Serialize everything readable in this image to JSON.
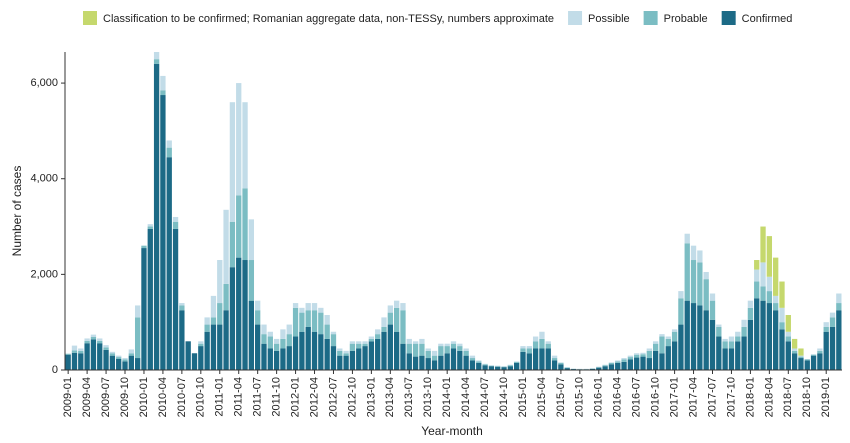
{
  "chart_data": {
    "type": "stacked-bar",
    "x_label": "Year-month",
    "y_label": "Number of cases",
    "categories": [
      "2009-01",
      null,
      null,
      "2009-04",
      null,
      null,
      "2009-07",
      null,
      null,
      "2009-10",
      null,
      null,
      "2010-01",
      null,
      null,
      "2010-04",
      null,
      null,
      "2010-07",
      null,
      null,
      "2010-10",
      null,
      null,
      "2011-01",
      null,
      null,
      "2011-04",
      null,
      null,
      "2011-07",
      null,
      null,
      "2011-10",
      null,
      null,
      "2012-01",
      null,
      null,
      "2012-04",
      null,
      null,
      "2012-07",
      null,
      null,
      "2012-10",
      null,
      null,
      "2013-01",
      null,
      null,
      "2013-04",
      null,
      null,
      "2013-07",
      null,
      null,
      "2013-10",
      null,
      null,
      "2014-01",
      null,
      null,
      "2014-04",
      null,
      null,
      "2014-07",
      null,
      null,
      "2014-10",
      null,
      null,
      "2015-01",
      null,
      null,
      "2015-04",
      null,
      null,
      "2015-07",
      null,
      null,
      "2015-10",
      null,
      null,
      "2016-01",
      null,
      null,
      "2016-04",
      null,
      null,
      "2016-07",
      null,
      null,
      "2016-10",
      null,
      null,
      "2017-01",
      null,
      null,
      "2017-04",
      null,
      null,
      "2017-07",
      null,
      null,
      "2017-10",
      null,
      null,
      "2018-01",
      null,
      null,
      "2018-04",
      null,
      null,
      "2018-07",
      null,
      null,
      "2018-10",
      null,
      null,
      "2019-01",
      null,
      null
    ],
    "series": [
      {
        "name": "Classification to be confirmed; Romanian aggregate data, non-TESSy, numbers approximate",
        "color": "#c5d86d",
        "values": [
          0,
          0,
          0,
          0,
          0,
          0,
          0,
          0,
          0,
          0,
          0,
          0,
          0,
          0,
          0,
          0,
          0,
          0,
          0,
          0,
          0,
          0,
          0,
          0,
          0,
          0,
          0,
          0,
          0,
          0,
          0,
          0,
          0,
          0,
          0,
          0,
          0,
          0,
          0,
          0,
          0,
          0,
          0,
          0,
          0,
          0,
          0,
          0,
          0,
          0,
          0,
          0,
          0,
          0,
          0,
          0,
          0,
          0,
          0,
          0,
          0,
          0,
          0,
          0,
          0,
          0,
          0,
          0,
          0,
          0,
          0,
          0,
          0,
          0,
          0,
          0,
          0,
          0,
          0,
          0,
          0,
          0,
          0,
          0,
          0,
          0,
          0,
          0,
          0,
          0,
          0,
          0,
          0,
          0,
          0,
          0,
          0,
          0,
          0,
          0,
          0,
          0,
          0,
          0,
          0,
          0,
          0,
          0,
          0,
          200,
          750,
          850,
          800,
          550,
          350,
          200,
          150,
          0,
          0,
          0,
          0,
          0,
          0
        ]
      },
      {
        "name": "Possible",
        "color": "#c2dce8",
        "values": [
          0,
          100,
          50,
          50,
          50,
          50,
          50,
          30,
          30,
          30,
          80,
          250,
          0,
          50,
          150,
          300,
          150,
          100,
          50,
          0,
          0,
          50,
          150,
          450,
          900,
          1550,
          2500,
          2350,
          1800,
          850,
          200,
          200,
          100,
          100,
          200,
          200,
          100,
          100,
          150,
          150,
          100,
          200,
          50,
          50,
          50,
          50,
          50,
          50,
          50,
          100,
          200,
          150,
          150,
          150,
          100,
          50,
          100,
          50,
          100,
          50,
          50,
          50,
          50,
          50,
          50,
          20,
          10,
          10,
          10,
          10,
          10,
          10,
          50,
          50,
          100,
          150,
          50,
          50,
          10,
          10,
          5,
          5,
          5,
          5,
          10,
          10,
          10,
          20,
          30,
          30,
          30,
          30,
          50,
          50,
          50,
          50,
          50,
          150,
          200,
          300,
          250,
          150,
          150,
          50,
          50,
          100,
          100,
          150,
          150,
          250,
          500,
          300,
          150,
          300,
          100,
          50,
          20,
          10,
          10,
          50,
          100,
          100,
          200
        ]
      },
      {
        "name": "Probable",
        "color": "#7bbdc3",
        "values": [
          20,
          50,
          50,
          50,
          50,
          50,
          50,
          50,
          40,
          40,
          50,
          850,
          50,
          50,
          100,
          100,
          200,
          150,
          100,
          0,
          0,
          50,
          150,
          150,
          450,
          550,
          950,
          1300,
          1500,
          850,
          300,
          200,
          250,
          150,
          200,
          250,
          600,
          400,
          350,
          450,
          450,
          300,
          250,
          100,
          50,
          150,
          100,
          50,
          50,
          100,
          100,
          250,
          500,
          700,
          200,
          270,
          250,
          150,
          100,
          200,
          150,
          100,
          100,
          100,
          50,
          30,
          20,
          10,
          10,
          10,
          20,
          20,
          70,
          100,
          150,
          200,
          100,
          50,
          30,
          10,
          5,
          5,
          5,
          5,
          10,
          20,
          30,
          30,
          50,
          50,
          60,
          50,
          150,
          150,
          350,
          150,
          200,
          550,
          1200,
          900,
          900,
          650,
          400,
          200,
          150,
          150,
          100,
          200,
          250,
          350,
          300,
          250,
          150,
          150,
          100,
          50,
          30,
          20,
          20,
          50,
          100,
          200,
          150
        ]
      },
      {
        "name": "Confirmed",
        "color": "#1c6a86",
        "values": [
          320,
          360,
          350,
          560,
          640,
          560,
          420,
          300,
          230,
          180,
          300,
          250,
          2550,
          2950,
          6400,
          5750,
          4450,
          2950,
          1250,
          600,
          350,
          500,
          800,
          950,
          950,
          1250,
          2150,
          2350,
          2300,
          1450,
          950,
          550,
          450,
          400,
          450,
          500,
          700,
          800,
          900,
          800,
          750,
          650,
          500,
          300,
          300,
          400,
          450,
          500,
          600,
          650,
          800,
          950,
          800,
          550,
          350,
          280,
          300,
          250,
          200,
          300,
          350,
          450,
          400,
          300,
          200,
          150,
          100,
          80,
          70,
          60,
          80,
          150,
          380,
          350,
          450,
          450,
          450,
          200,
          120,
          40,
          20,
          15,
          15,
          25,
          50,
          80,
          120,
          150,
          170,
          220,
          260,
          280,
          250,
          400,
          350,
          500,
          600,
          950,
          1450,
          1400,
          1350,
          1250,
          1050,
          700,
          450,
          450,
          600,
          700,
          1050,
          1500,
          1450,
          1400,
          1250,
          850,
          600,
          350,
          250,
          200,
          300,
          350,
          800,
          900,
          1250
        ]
      }
    ],
    "ylim": [
      0,
      6650
    ],
    "yticks": [
      0,
      {
        "value": 2000,
        "label": "2,000"
      },
      {
        "value": 4000,
        "label": "4,000"
      },
      {
        "value": 6000,
        "label": "6,000"
      }
    ],
    "legend": "top"
  }
}
